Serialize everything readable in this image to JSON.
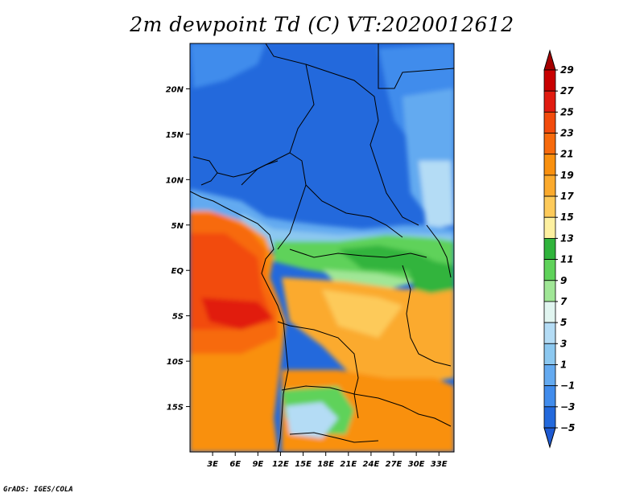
{
  "title": "2m dewpoint Td (C) VT:2020012612",
  "footer": "GrADS: IGES/COLA",
  "map": {
    "lat_range": [
      -20,
      25
    ],
    "lon_range": [
      0,
      35
    ],
    "lat_ticks": [
      "20N",
      "15N",
      "10N",
      "5N",
      "EQ",
      "5S",
      "10S",
      "15S"
    ],
    "lon_ticks": [
      "3E",
      "6E",
      "9E",
      "12E",
      "15E",
      "18E",
      "21E",
      "24E",
      "27E",
      "30E",
      "33E"
    ]
  },
  "colorbar": {
    "labels": [
      "29",
      "27",
      "25",
      "23",
      "21",
      "19",
      "17",
      "15",
      "13",
      "11",
      "9",
      "7",
      "5",
      "3",
      "1",
      "−1",
      "−3",
      "−5"
    ],
    "colors": {
      "above_29": "#a50000",
      "27_29": "#c80000",
      "25_27": "#e11b10",
      "23_25": "#f24b0c",
      "21_23": "#f76a0c",
      "19_21": "#f9900e",
      "17_19": "#fbaa2d",
      "15_17": "#fdca5a",
      "13_15": "#fdf0a0",
      "11_13": "#30b43c",
      "9_11": "#5fd25a",
      "7_9": "#a0e696",
      "5_7": "#e1f5f0",
      "3_5": "#b4dcf5",
      "1_3": "#8cc8f0",
      "-1_1": "#64aaf0",
      "-3_-1": "#418cec",
      "-5_-3": "#2369dc",
      "below_-5": "#1e5ad2"
    }
  }
}
